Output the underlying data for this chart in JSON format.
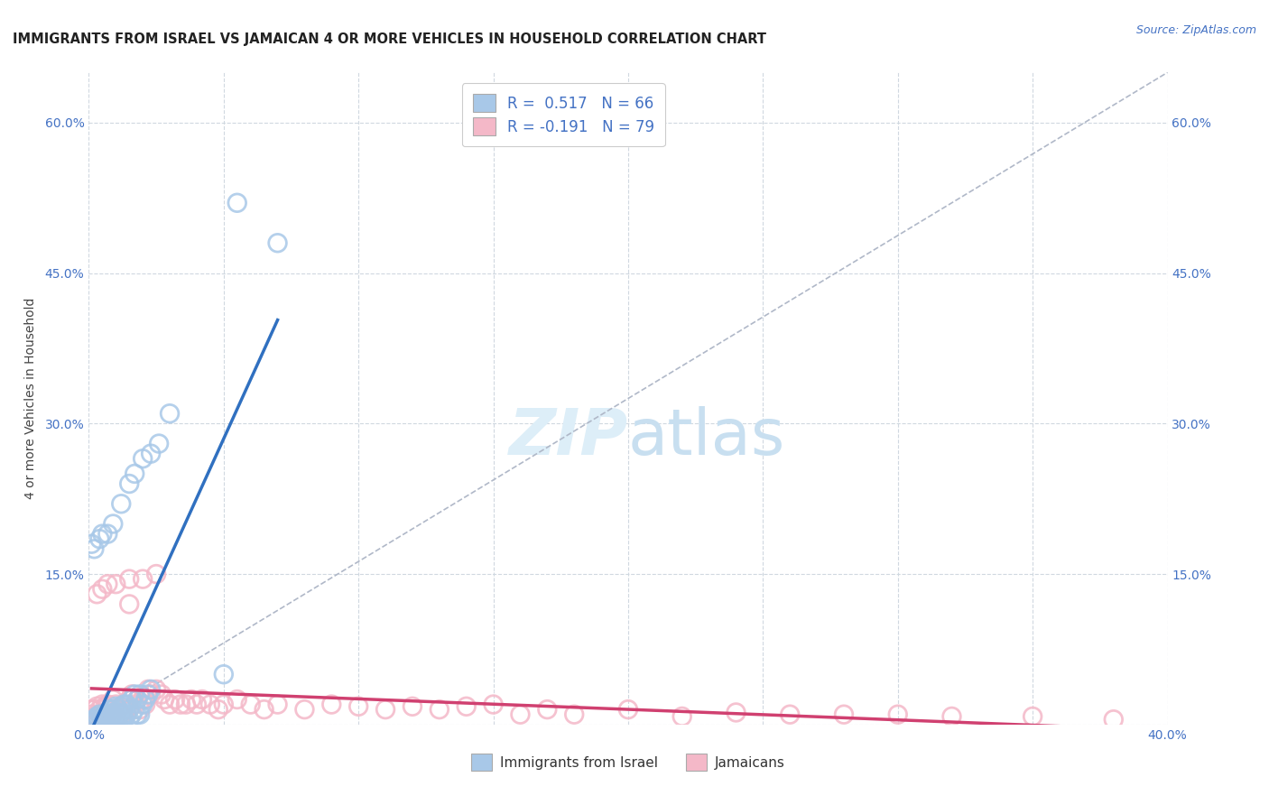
{
  "title": "IMMIGRANTS FROM ISRAEL VS JAMAICAN 4 OR MORE VEHICLES IN HOUSEHOLD CORRELATION CHART",
  "source": "Source: ZipAtlas.com",
  "ylabel": "4 or more Vehicles in Household",
  "xmin": 0.0,
  "xmax": 0.4,
  "ymin": 0.0,
  "ymax": 0.65,
  "blue_color": "#a8c8e8",
  "pink_color": "#f4b8c8",
  "blue_edge_color": "#7aaed0",
  "pink_edge_color": "#e890a8",
  "blue_line_color": "#3070c0",
  "pink_line_color": "#d04070",
  "diag_color": "#b0b8c8",
  "legend_label_blue": "Immigrants from Israel",
  "legend_label_pink": "Jamaicans",
  "blue_r": 0.517,
  "blue_n": 66,
  "pink_r": -0.191,
  "pink_n": 79,
  "watermark_color": "#ddeef8",
  "blue_x": [
    0.002,
    0.003,
    0.003,
    0.004,
    0.004,
    0.005,
    0.005,
    0.005,
    0.006,
    0.006,
    0.006,
    0.007,
    0.007,
    0.007,
    0.008,
    0.008,
    0.008,
    0.008,
    0.009,
    0.009,
    0.009,
    0.01,
    0.01,
    0.01,
    0.01,
    0.011,
    0.011,
    0.011,
    0.012,
    0.012,
    0.012,
    0.013,
    0.013,
    0.013,
    0.014,
    0.014,
    0.015,
    0.015,
    0.016,
    0.016,
    0.017,
    0.017,
    0.018,
    0.018,
    0.019,
    0.019,
    0.02,
    0.021,
    0.022,
    0.023,
    0.001,
    0.002,
    0.004,
    0.005,
    0.007,
    0.009,
    0.012,
    0.015,
    0.017,
    0.02,
    0.023,
    0.026,
    0.03,
    0.05,
    0.055,
    0.07
  ],
  "blue_y": [
    0.005,
    0.005,
    0.008,
    0.005,
    0.01,
    0.005,
    0.007,
    0.008,
    0.005,
    0.008,
    0.01,
    0.005,
    0.01,
    0.012,
    0.005,
    0.008,
    0.01,
    0.015,
    0.005,
    0.01,
    0.015,
    0.005,
    0.008,
    0.012,
    0.018,
    0.005,
    0.01,
    0.015,
    0.005,
    0.012,
    0.018,
    0.005,
    0.01,
    0.02,
    0.01,
    0.02,
    0.005,
    0.015,
    0.01,
    0.025,
    0.015,
    0.03,
    0.01,
    0.025,
    0.01,
    0.03,
    0.02,
    0.025,
    0.03,
    0.035,
    0.18,
    0.175,
    0.185,
    0.19,
    0.19,
    0.2,
    0.22,
    0.24,
    0.25,
    0.265,
    0.27,
    0.28,
    0.31,
    0.05,
    0.52,
    0.48
  ],
  "pink_x": [
    0.001,
    0.001,
    0.002,
    0.002,
    0.003,
    0.003,
    0.004,
    0.004,
    0.005,
    0.005,
    0.005,
    0.006,
    0.006,
    0.007,
    0.007,
    0.008,
    0.008,
    0.009,
    0.009,
    0.01,
    0.01,
    0.011,
    0.012,
    0.013,
    0.014,
    0.015,
    0.016,
    0.017,
    0.018,
    0.019,
    0.02,
    0.021,
    0.022,
    0.023,
    0.025,
    0.027,
    0.028,
    0.03,
    0.032,
    0.034,
    0.036,
    0.038,
    0.04,
    0.042,
    0.045,
    0.048,
    0.05,
    0.055,
    0.06,
    0.065,
    0.07,
    0.08,
    0.09,
    0.1,
    0.11,
    0.12,
    0.13,
    0.14,
    0.15,
    0.16,
    0.17,
    0.18,
    0.2,
    0.22,
    0.24,
    0.26,
    0.28,
    0.3,
    0.32,
    0.35,
    0.003,
    0.005,
    0.007,
    0.01,
    0.015,
    0.02,
    0.025,
    0.38,
    0.015
  ],
  "pink_y": [
    0.01,
    0.015,
    0.008,
    0.015,
    0.008,
    0.018,
    0.01,
    0.015,
    0.005,
    0.01,
    0.02,
    0.008,
    0.018,
    0.01,
    0.02,
    0.008,
    0.015,
    0.01,
    0.025,
    0.008,
    0.02,
    0.015,
    0.01,
    0.02,
    0.015,
    0.025,
    0.03,
    0.02,
    0.025,
    0.015,
    0.025,
    0.02,
    0.035,
    0.03,
    0.035,
    0.03,
    0.025,
    0.02,
    0.025,
    0.02,
    0.02,
    0.025,
    0.02,
    0.025,
    0.02,
    0.015,
    0.02,
    0.025,
    0.02,
    0.015,
    0.02,
    0.015,
    0.02,
    0.018,
    0.015,
    0.018,
    0.015,
    0.018,
    0.02,
    0.01,
    0.015,
    0.01,
    0.015,
    0.008,
    0.012,
    0.01,
    0.01,
    0.01,
    0.008,
    0.008,
    0.13,
    0.135,
    0.14,
    0.14,
    0.145,
    0.145,
    0.15,
    0.005,
    0.12
  ]
}
